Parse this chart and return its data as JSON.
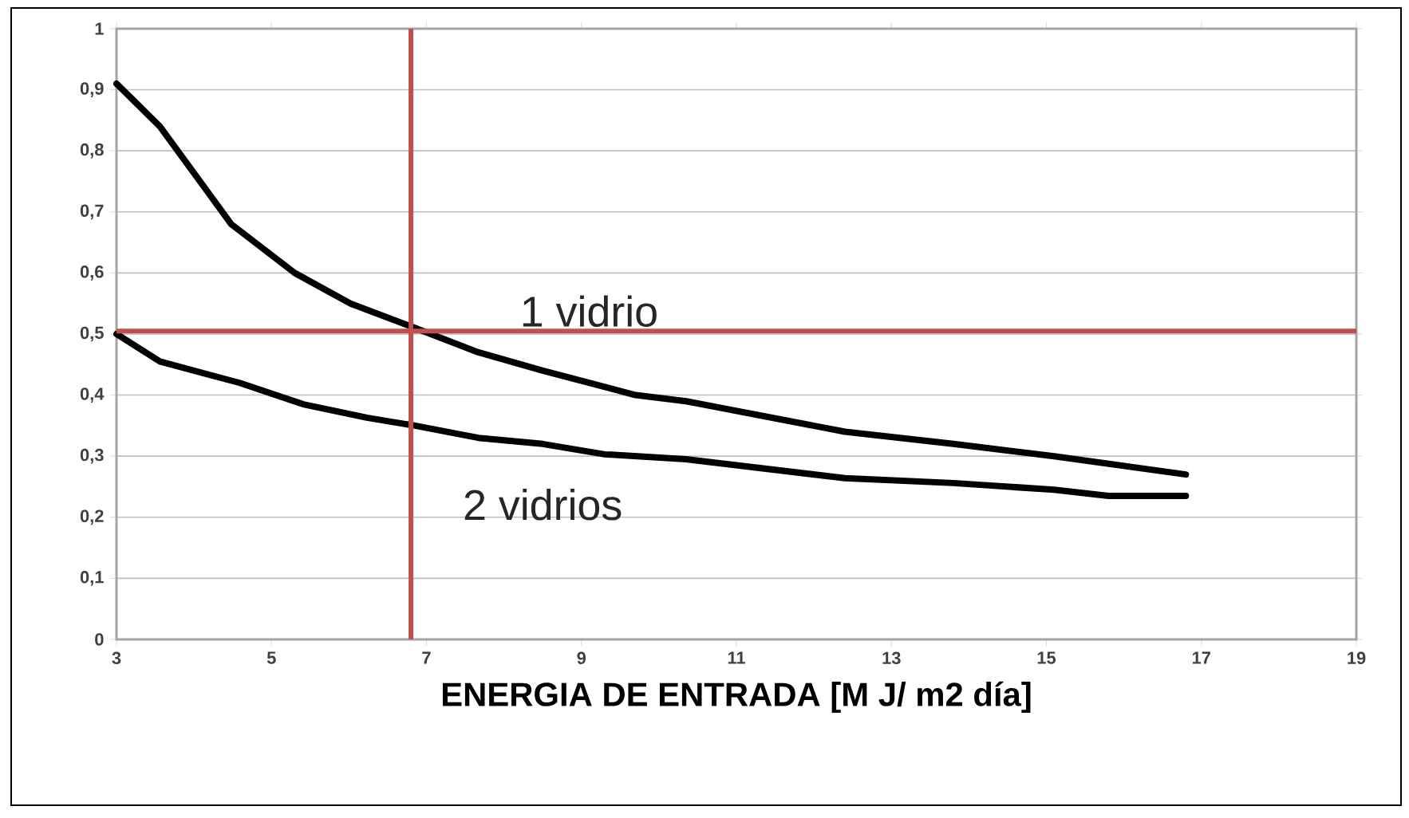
{
  "chart_data": {
    "type": "line",
    "xlabel": "ENERGIA DE ENTRADA [M J/ m2 día]",
    "xlim": [
      3,
      19
    ],
    "xticks": [
      3,
      5,
      7,
      9,
      11,
      13,
      15,
      17,
      19
    ],
    "ylim": [
      0,
      1
    ],
    "yticks": [
      0,
      {
        "value": 0.1,
        "label": "0,1"
      },
      {
        "value": 0.2,
        "label": "0,2"
      },
      {
        "value": 0.3,
        "label": "0,3"
      },
      {
        "value": 0.4,
        "label": "0,4"
      },
      {
        "value": 0.5,
        "label": "0,5"
      },
      {
        "value": 0.6,
        "label": "0,6"
      },
      {
        "value": 0.7,
        "label": "0,7"
      },
      {
        "value": 0.8,
        "label": "0,8"
      },
      {
        "value": 0.9,
        "label": "0,9"
      },
      1
    ],
    "grid": "y",
    "marker": "none",
    "line_style": "solid",
    "series": [
      {
        "name": "1 vidrio",
        "color": "#000000",
        "x": [
          3,
          3.56,
          4.48,
          5.3,
          6.02,
          6.85,
          7.67,
          8.5,
          9.1,
          9.7,
          10.35,
          12.4,
          13.8,
          15.1,
          16.8
        ],
        "values": [
          0.91,
          0.84,
          0.68,
          0.6,
          0.55,
          0.51,
          0.47,
          0.44,
          0.42,
          0.4,
          0.39,
          0.34,
          0.32,
          0.3,
          0.27
        ]
      },
      {
        "name": "2 vidrios",
        "color": "#000000",
        "x": [
          3,
          3.56,
          4.59,
          5.41,
          6.23,
          6.85,
          7.67,
          8.5,
          9.3,
          10.35,
          12.4,
          13.8,
          15.1,
          15.8,
          16.8
        ],
        "values": [
          0.5,
          0.455,
          0.42,
          0.385,
          0.363,
          0.35,
          0.33,
          0.32,
          0.303,
          0.295,
          0.264,
          0.256,
          0.245,
          0.235,
          0.235
        ]
      }
    ],
    "ref_lines": [
      {
        "axis": "y",
        "value": 0.505,
        "color": "#c0504d"
      },
      {
        "axis": "x",
        "value": 6.8,
        "color": "#c0504d"
      }
    ]
  }
}
